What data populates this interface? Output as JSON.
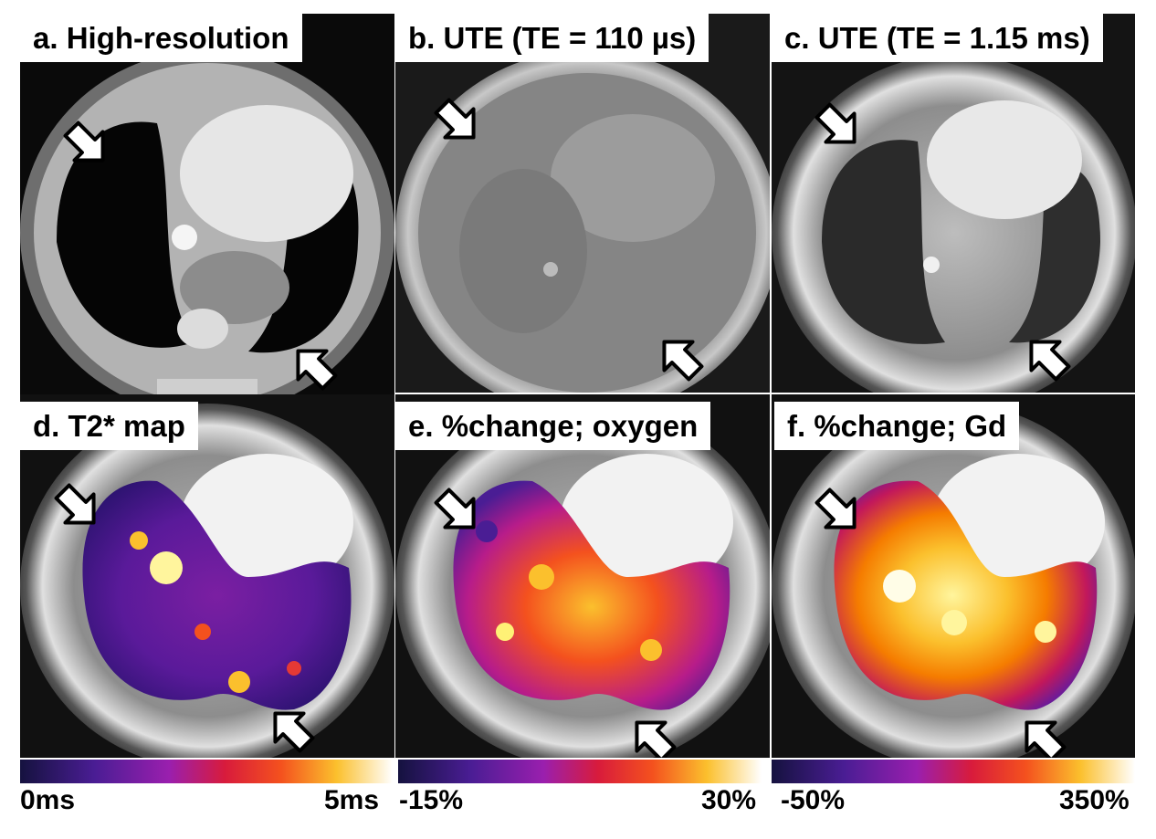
{
  "panels": [
    {
      "id": "a",
      "label": "a. High-resolution"
    },
    {
      "id": "b",
      "label": "b. UTE (TE = 110 µs)"
    },
    {
      "id": "c",
      "label": "c. UTE (TE = 1.15 ms)"
    },
    {
      "id": "d",
      "label": "d. T2* map"
    },
    {
      "id": "e",
      "label": "e. %change; oxygen"
    },
    {
      "id": "f",
      "label": "f. %change; Gd"
    }
  ],
  "colorbars": [
    {
      "min": "0ms",
      "max": "5ms"
    },
    {
      "min": "-15%",
      "max": "30%"
    },
    {
      "min": "-50%",
      "max": "350%"
    }
  ],
  "colors": {
    "colormap": [
      "#1a1448",
      "#4b1c8f",
      "#8a1fb0",
      "#c2185b",
      "#e53935",
      "#f57c00",
      "#fbc02d",
      "#fff59d",
      "#ffffff"
    ]
  },
  "icons": [
    "arrow-icon"
  ]
}
